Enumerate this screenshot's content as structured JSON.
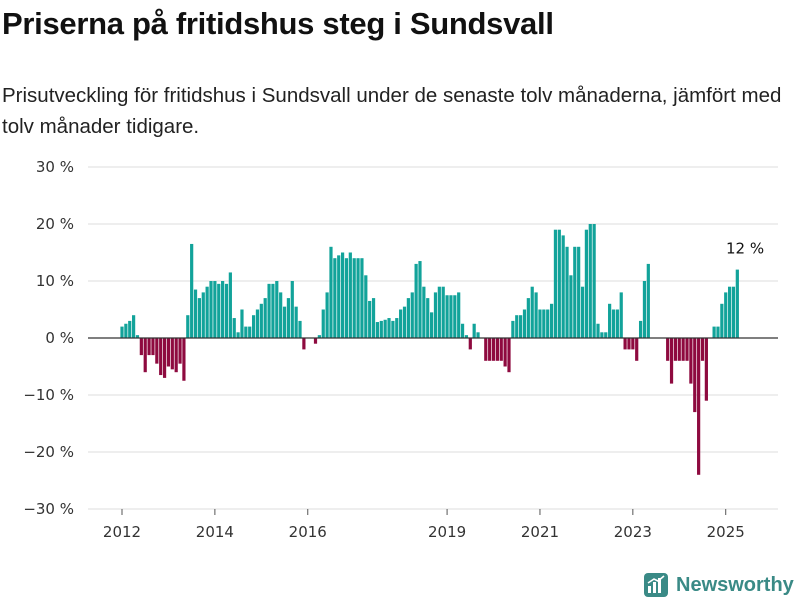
{
  "title": "Priserna på fritidshus steg i Sundsvall",
  "subtitle": "Prisutveckling för fritidshus i Sundsvall under de senaste tolv månaderna, jämfört med tolv månader tidigare.",
  "brand": {
    "name": "Newsworthy",
    "icon": "newsworthy-logo-icon",
    "color": "#3a8a86"
  },
  "colors": {
    "positive": "#12a39a",
    "negative": "#8e0a3f",
    "zero_line": "#333333",
    "grid": "#dddddd"
  },
  "chart_data": {
    "type": "bar",
    "x_unit": "month",
    "y_unit": "%",
    "ylim": [
      -30,
      30
    ],
    "y_ticks": [
      30,
      20,
      10,
      0,
      -10,
      -20,
      -30
    ],
    "y_tick_labels": [
      "30 %",
      "20 %",
      "10 %",
      "0 %",
      "−10 %",
      "−20 %",
      "−30 %"
    ],
    "x_ticks": [
      "2012",
      "2014",
      "2016",
      "2019",
      "2021",
      "2023",
      "2025"
    ],
    "x_tick_labels": [
      "2012",
      "2014",
      "2016",
      "2019",
      "2021",
      "2023",
      "2025"
    ],
    "grid": true,
    "annotation": {
      "label": "12 %",
      "at": "2025-06",
      "value": 12
    },
    "series": [
      {
        "start": "2012-01",
        "values": [
          2,
          2.5,
          3,
          4,
          0.5,
          -3,
          -6,
          -3,
          -3,
          -4.5,
          -6.5,
          -7,
          -5,
          -5.5,
          -6,
          -4.5,
          -7.5,
          4,
          16.5,
          8.5,
          7,
          8,
          9,
          10,
          10,
          9.5,
          10,
          9.5,
          11.5,
          3.5,
          1,
          5,
          2,
          2,
          4,
          5,
          6,
          7,
          9.5,
          9.5,
          10,
          8,
          5.5,
          7,
          10,
          5.5,
          3,
          -2,
          0,
          0,
          -1,
          0.5,
          5,
          8,
          16,
          14,
          14.5,
          15,
          14,
          15,
          14,
          14,
          14,
          11,
          6.5,
          7,
          2.8,
          3,
          3.2,
          3.5,
          3,
          3.5,
          5,
          5.5,
          7,
          8,
          13,
          13.5,
          9,
          7,
          4.5,
          8,
          9,
          9,
          7.5,
          7.5,
          7.5,
          8,
          2.5,
          0.5,
          -2,
          2.5,
          1,
          0,
          -4,
          -4,
          -4,
          -4,
          -4,
          -5,
          -6,
          3,
          4,
          4,
          5,
          7,
          9,
          8,
          5,
          5,
          5,
          6,
          19,
          19,
          18,
          16,
          11,
          16,
          16,
          9,
          19,
          20,
          20,
          2.5,
          1,
          1,
          6,
          5,
          5,
          8,
          -2,
          -2,
          -2,
          -4,
          3,
          10,
          13,
          0,
          0,
          0,
          0,
          -4,
          -8,
          -4,
          -4,
          -4,
          -4,
          -8,
          -13,
          -24,
          -4,
          -11,
          0,
          2,
          2,
          6,
          8,
          9,
          9,
          12
        ]
      }
    ]
  }
}
